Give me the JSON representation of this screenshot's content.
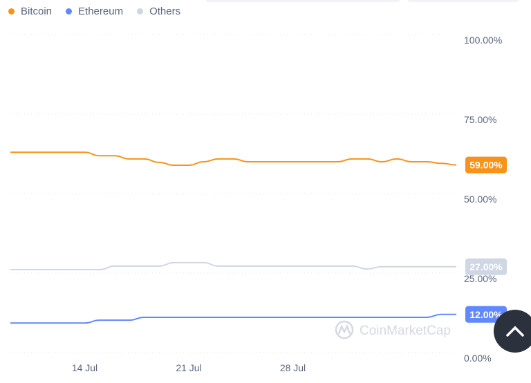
{
  "chart_data": {
    "type": "line",
    "x": [
      "9 Jul",
      "10 Jul",
      "11 Jul",
      "12 Jul",
      "13 Jul",
      "14 Jul",
      "15 Jul",
      "16 Jul",
      "17 Jul",
      "18 Jul",
      "19 Jul",
      "20 Jul",
      "21 Jul",
      "22 Jul",
      "23 Jul",
      "24 Jul",
      "25 Jul",
      "26 Jul",
      "27 Jul",
      "28 Jul",
      "29 Jul",
      "30 Jul",
      "31 Jul",
      "1 Aug",
      "2 Aug",
      "3 Aug",
      "4 Aug",
      "5 Aug",
      "6 Aug",
      "7 Aug",
      "8 Aug"
    ],
    "x_ticks": [
      "14 Jul",
      "21 Jul",
      "28 Jul"
    ],
    "y_ticks": [
      "0.00%",
      "25.00%",
      "50.00%",
      "75.00%",
      "100.00%"
    ],
    "ylim": [
      0,
      100
    ],
    "grid": true,
    "legend_position": "top-left",
    "series": [
      {
        "name": "Bitcoin",
        "color": "#f7931a",
        "last_label": "59.00%",
        "values": [
          63,
          63,
          63,
          63,
          63,
          63,
          61.9,
          61.9,
          60.9,
          60.9,
          59.8,
          58.9,
          58.9,
          60,
          60.9,
          60.9,
          60,
          60,
          60,
          60,
          60,
          60,
          60,
          60.9,
          60.9,
          60,
          60.9,
          60,
          60,
          59.5,
          59
        ]
      },
      {
        "name": "Ethereum",
        "color": "#6188ff",
        "last_label": "12.00%",
        "values": [
          9.3,
          9.3,
          9.3,
          9.3,
          9.3,
          9.3,
          10.2,
          10.2,
          10.2,
          11.1,
          11.1,
          11.1,
          11.1,
          11.1,
          11.1,
          11.1,
          11.1,
          11.1,
          11.1,
          11.1,
          11.1,
          11.1,
          11.1,
          11.1,
          11.1,
          11.1,
          11.1,
          11.1,
          11.1,
          12,
          12
        ]
      },
      {
        "name": "Others",
        "color": "#cfd6e4",
        "last_label": "27.00%",
        "values": [
          26.1,
          26.1,
          26.1,
          26.1,
          26.1,
          26.1,
          26.1,
          27.2,
          27.2,
          27.2,
          27.2,
          28.3,
          28.3,
          28.3,
          27.2,
          27.2,
          27.2,
          27.2,
          27.2,
          27.2,
          27.2,
          27.2,
          27.2,
          27.2,
          26.3,
          27,
          27,
          27,
          27,
          27,
          27
        ]
      }
    ]
  },
  "watermark": "CoinMarketCap",
  "scroll_top_icon": "chevron-up-icon"
}
